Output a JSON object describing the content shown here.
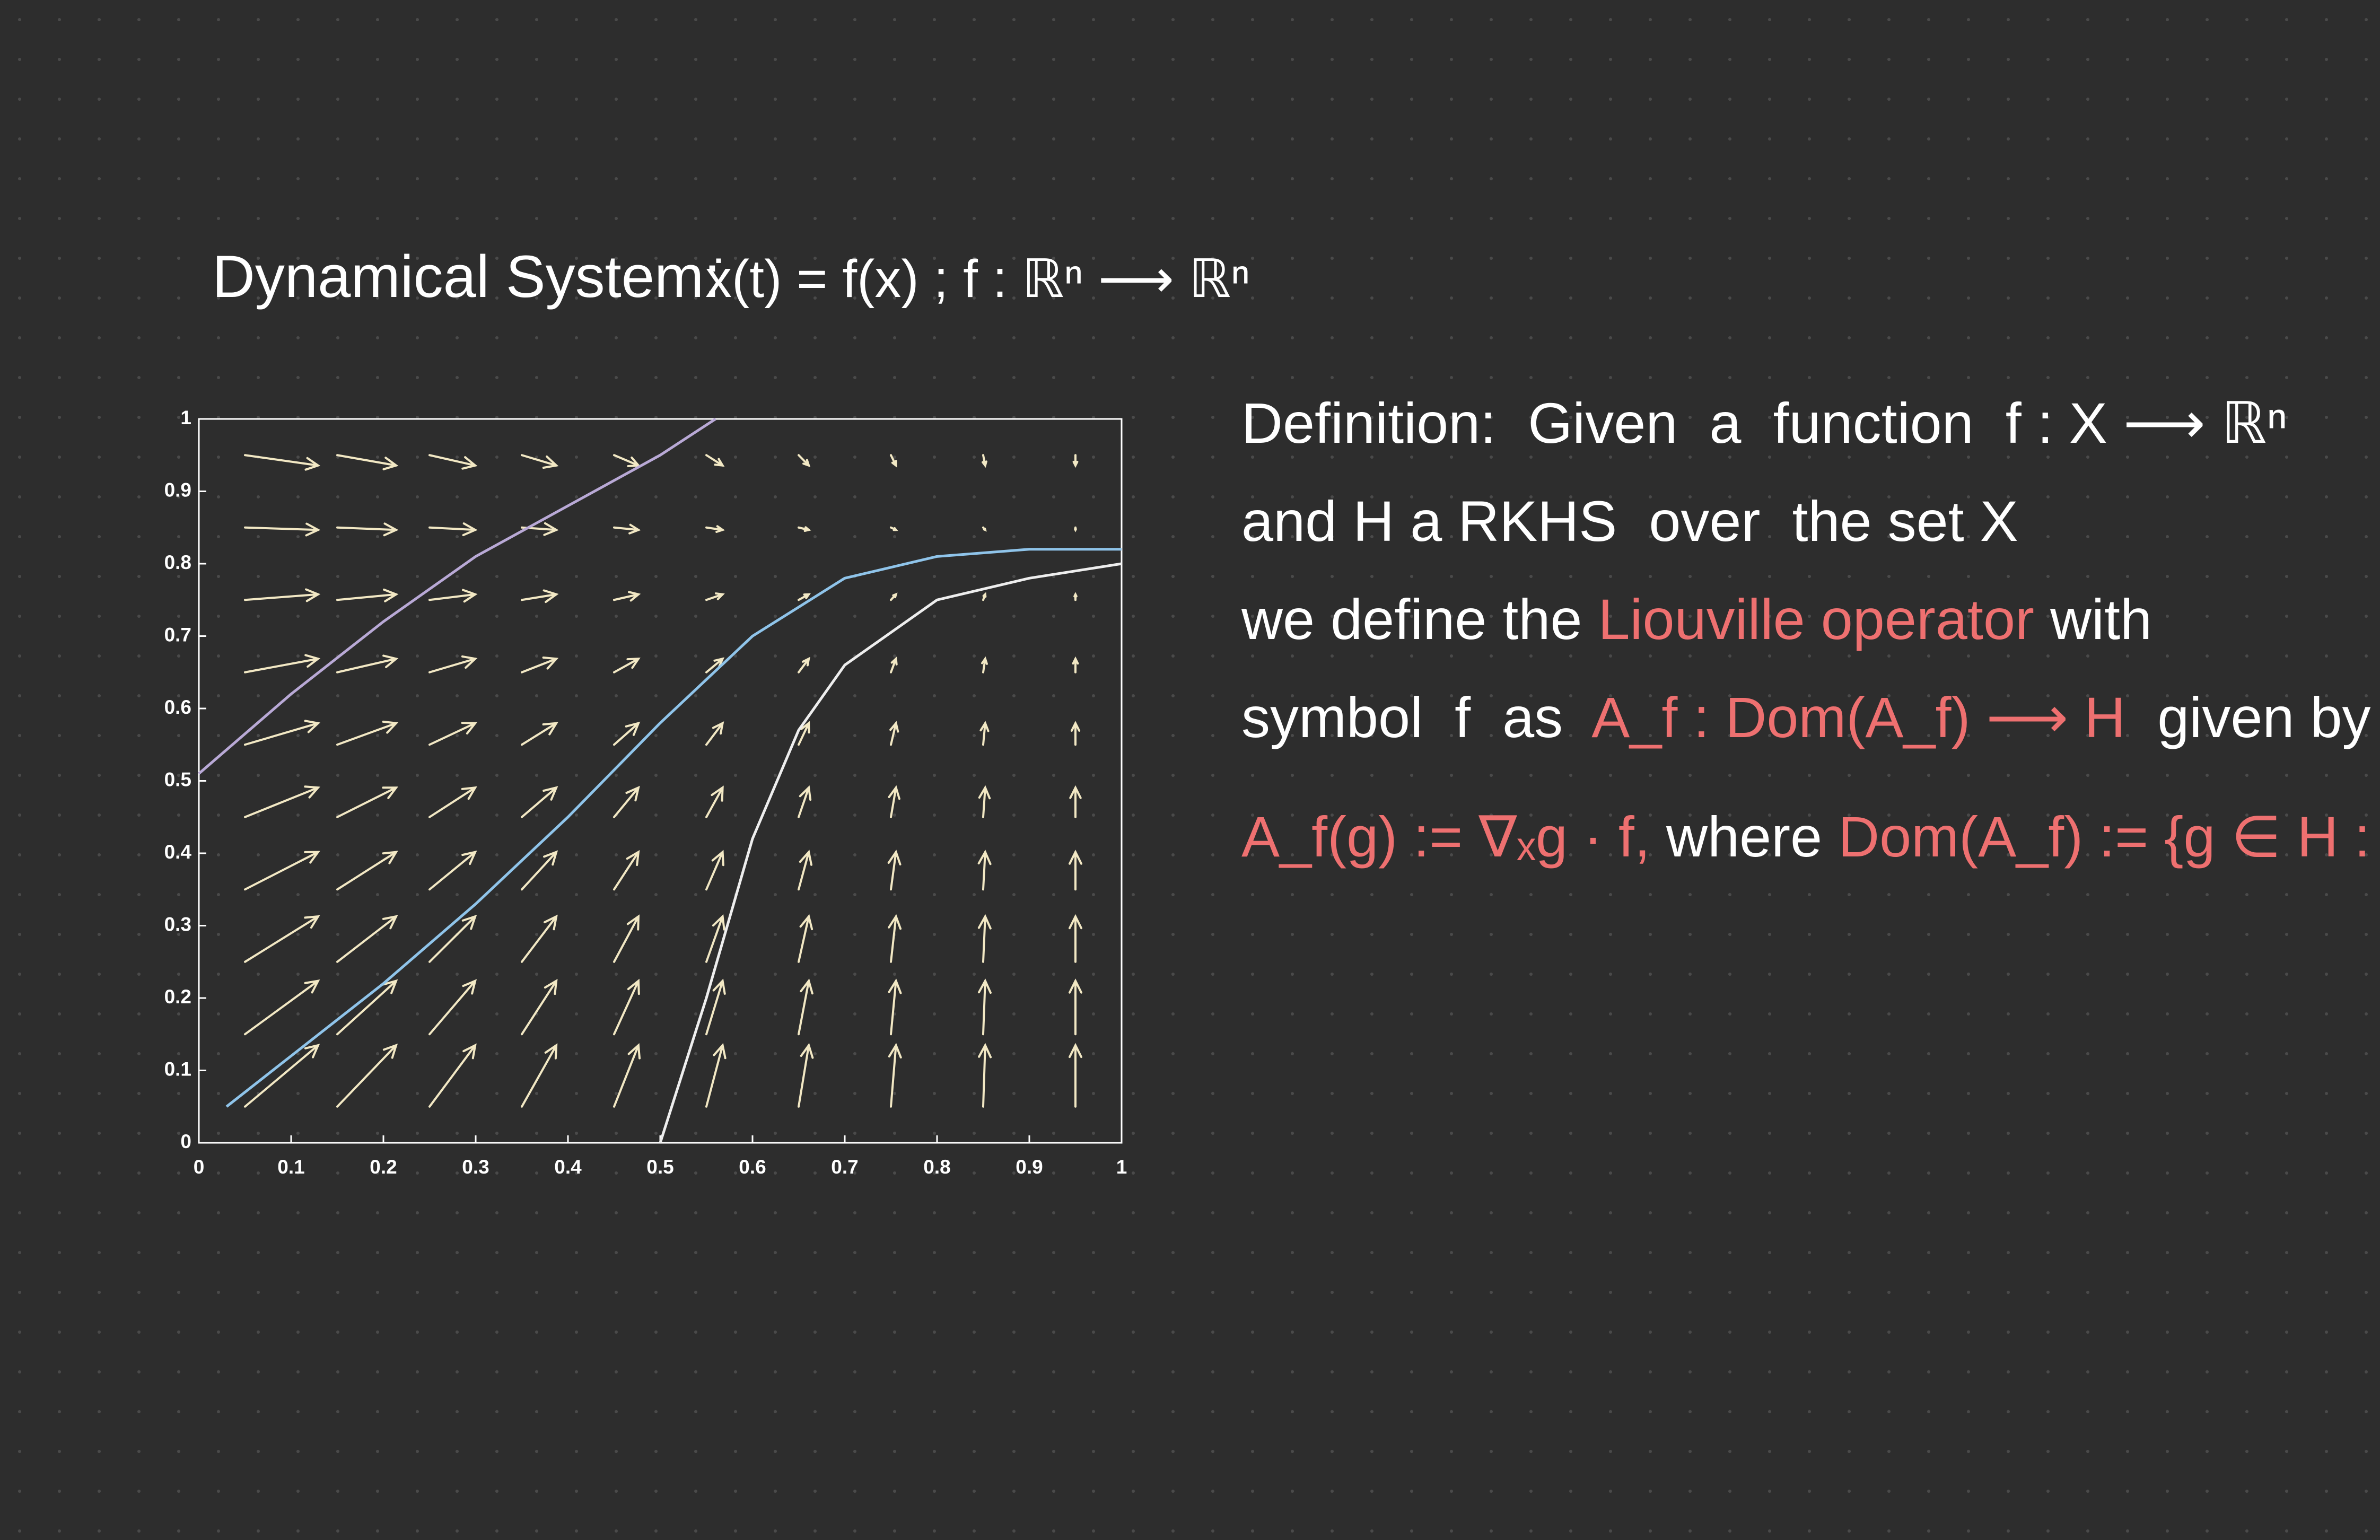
{
  "notes": {
    "heading": "Dynamical System:",
    "equation": "ẋ(t) = f(x) ;  f : ℝⁿ ⟶ ℝⁿ",
    "definition": [
      [
        {
          "text": "Definition:  Given  a  function  f : X ⟶ ℝⁿ",
          "color": "#ffffff"
        }
      ],
      [
        {
          "text": "and H a RKHS  over  the set X",
          "color": "#ffffff"
        }
      ],
      [
        {
          "text": "we define the ",
          "color": "#ffffff"
        },
        {
          "text": "Liouville operator",
          "color": "#ee7070"
        },
        {
          "text": " with",
          "color": "#ffffff"
        }
      ],
      [
        {
          "text": "symbol  f  as  ",
          "color": "#ffffff"
        },
        {
          "text": "A_f : Dom(A_f) ⟶ H",
          "color": "#ee7070"
        },
        {
          "text": "  given by",
          "color": "#ffffff"
        }
      ],
      [
        {
          "text": "A_f(g) := ∇ₓg · f,",
          "color": "#ee7070"
        },
        {
          "text": " where ",
          "color": "#ffffff"
        },
        {
          "text": "Dom(A_f) := {g ∈ H : ∇ₓg · f ∈ H}.",
          "color": "#ee7070"
        }
      ]
    ]
  },
  "chart_data": {
    "type": "quiver",
    "xlim": [
      0,
      1
    ],
    "ylim": [
      0,
      1
    ],
    "xticks": [
      0,
      0.1,
      0.2,
      0.3,
      0.4,
      0.5,
      0.6,
      0.7,
      0.8,
      0.9,
      1
    ],
    "yticks": [
      0,
      0.1,
      0.2,
      0.3,
      0.4,
      0.5,
      0.6,
      0.7,
      0.8,
      0.9,
      1
    ],
    "arrow_color": "#f2e8c4",
    "vectors": {
      "x": [
        0.05,
        0.15,
        0.25,
        0.35,
        0.45,
        0.55,
        0.65,
        0.75,
        0.85,
        0.95
      ],
      "y": [
        0.05,
        0.15,
        0.25,
        0.35,
        0.45,
        0.55,
        0.65,
        0.75,
        0.85,
        0.95
      ],
      "u": [
        [
          0.72,
          0.58,
          0.45,
          0.34,
          0.24,
          0.16,
          0.1,
          0.05,
          0.02,
          0
        ],
        [
          0.72,
          0.58,
          0.45,
          0.34,
          0.24,
          0.16,
          0.1,
          0.05,
          0.02,
          0
        ],
        [
          0.72,
          0.58,
          0.45,
          0.34,
          0.24,
          0.16,
          0.1,
          0.05,
          0.02,
          0
        ],
        [
          0.72,
          0.58,
          0.45,
          0.34,
          0.24,
          0.16,
          0.1,
          0.05,
          0.02,
          0
        ],
        [
          0.72,
          0.58,
          0.45,
          0.34,
          0.24,
          0.16,
          0.1,
          0.05,
          0.02,
          0
        ],
        [
          0.72,
          0.58,
          0.45,
          0.34,
          0.24,
          0.16,
          0.1,
          0.05,
          0.02,
          0
        ],
        [
          0.72,
          0.58,
          0.45,
          0.34,
          0.24,
          0.16,
          0.1,
          0.05,
          0.02,
          0
        ],
        [
          0.72,
          0.58,
          0.45,
          0.34,
          0.24,
          0.16,
          0.1,
          0.05,
          0.02,
          0
        ],
        [
          0.72,
          0.58,
          0.45,
          0.34,
          0.24,
          0.16,
          0.1,
          0.05,
          0.02,
          0
        ],
        [
          0.72,
          0.58,
          0.45,
          0.34,
          0.24,
          0.16,
          0.1,
          0.05,
          0.02,
          0
        ]
      ],
      "v": [
        [
          0.77,
          0.77,
          0.77,
          0.77,
          0.77,
          0.77,
          0.77,
          0.77,
          0.77,
          0.77
        ],
        [
          0.67,
          0.67,
          0.67,
          0.67,
          0.67,
          0.67,
          0.67,
          0.67,
          0.67,
          0.67
        ],
        [
          0.57,
          0.57,
          0.57,
          0.57,
          0.57,
          0.57,
          0.57,
          0.57,
          0.57,
          0.57
        ],
        [
          0.47,
          0.47,
          0.47,
          0.47,
          0.47,
          0.47,
          0.47,
          0.47,
          0.47,
          0.47
        ],
        [
          0.37,
          0.37,
          0.37,
          0.37,
          0.37,
          0.37,
          0.37,
          0.37,
          0.37,
          0.37
        ],
        [
          0.27,
          0.27,
          0.27,
          0.27,
          0.27,
          0.27,
          0.27,
          0.27,
          0.27,
          0.27
        ],
        [
          0.17,
          0.17,
          0.17,
          0.17,
          0.17,
          0.17,
          0.17,
          0.17,
          0.17,
          0.17
        ],
        [
          0.07,
          0.07,
          0.07,
          0.07,
          0.07,
          0.07,
          0.07,
          0.07,
          0.07,
          0.07
        ],
        [
          -0.03,
          -0.03,
          -0.03,
          -0.03,
          -0.03,
          -0.03,
          -0.03,
          -0.03,
          -0.03,
          -0.03
        ],
        [
          -0.13,
          -0.13,
          -0.13,
          -0.13,
          -0.13,
          -0.13,
          -0.13,
          -0.13,
          -0.13,
          -0.13
        ]
      ]
    },
    "series": [
      {
        "color": "#b9a9d6",
        "x": [
          0,
          0.1,
          0.2,
          0.3,
          0.4,
          0.5,
          0.56
        ],
        "values": [
          0.51,
          0.62,
          0.72,
          0.81,
          0.88,
          0.95,
          1
        ]
      },
      {
        "color": "#8fc4ea",
        "x": [
          0.03,
          0.1,
          0.2,
          0.3,
          0.4,
          0.5,
          0.6,
          0.7,
          0.8,
          0.9,
          1
        ],
        "values": [
          0.05,
          0.12,
          0.22,
          0.33,
          0.45,
          0.58,
          0.7,
          0.78,
          0.81,
          0.82,
          0.82
        ]
      },
      {
        "color": "#eeeeee",
        "x": [
          0.5,
          0.55,
          0.6,
          0.65,
          0.7,
          0.8,
          0.9,
          1
        ],
        "values": [
          0,
          0.2,
          0.42,
          0.57,
          0.66,
          0.75,
          0.78,
          0.8
        ]
      }
    ]
  }
}
